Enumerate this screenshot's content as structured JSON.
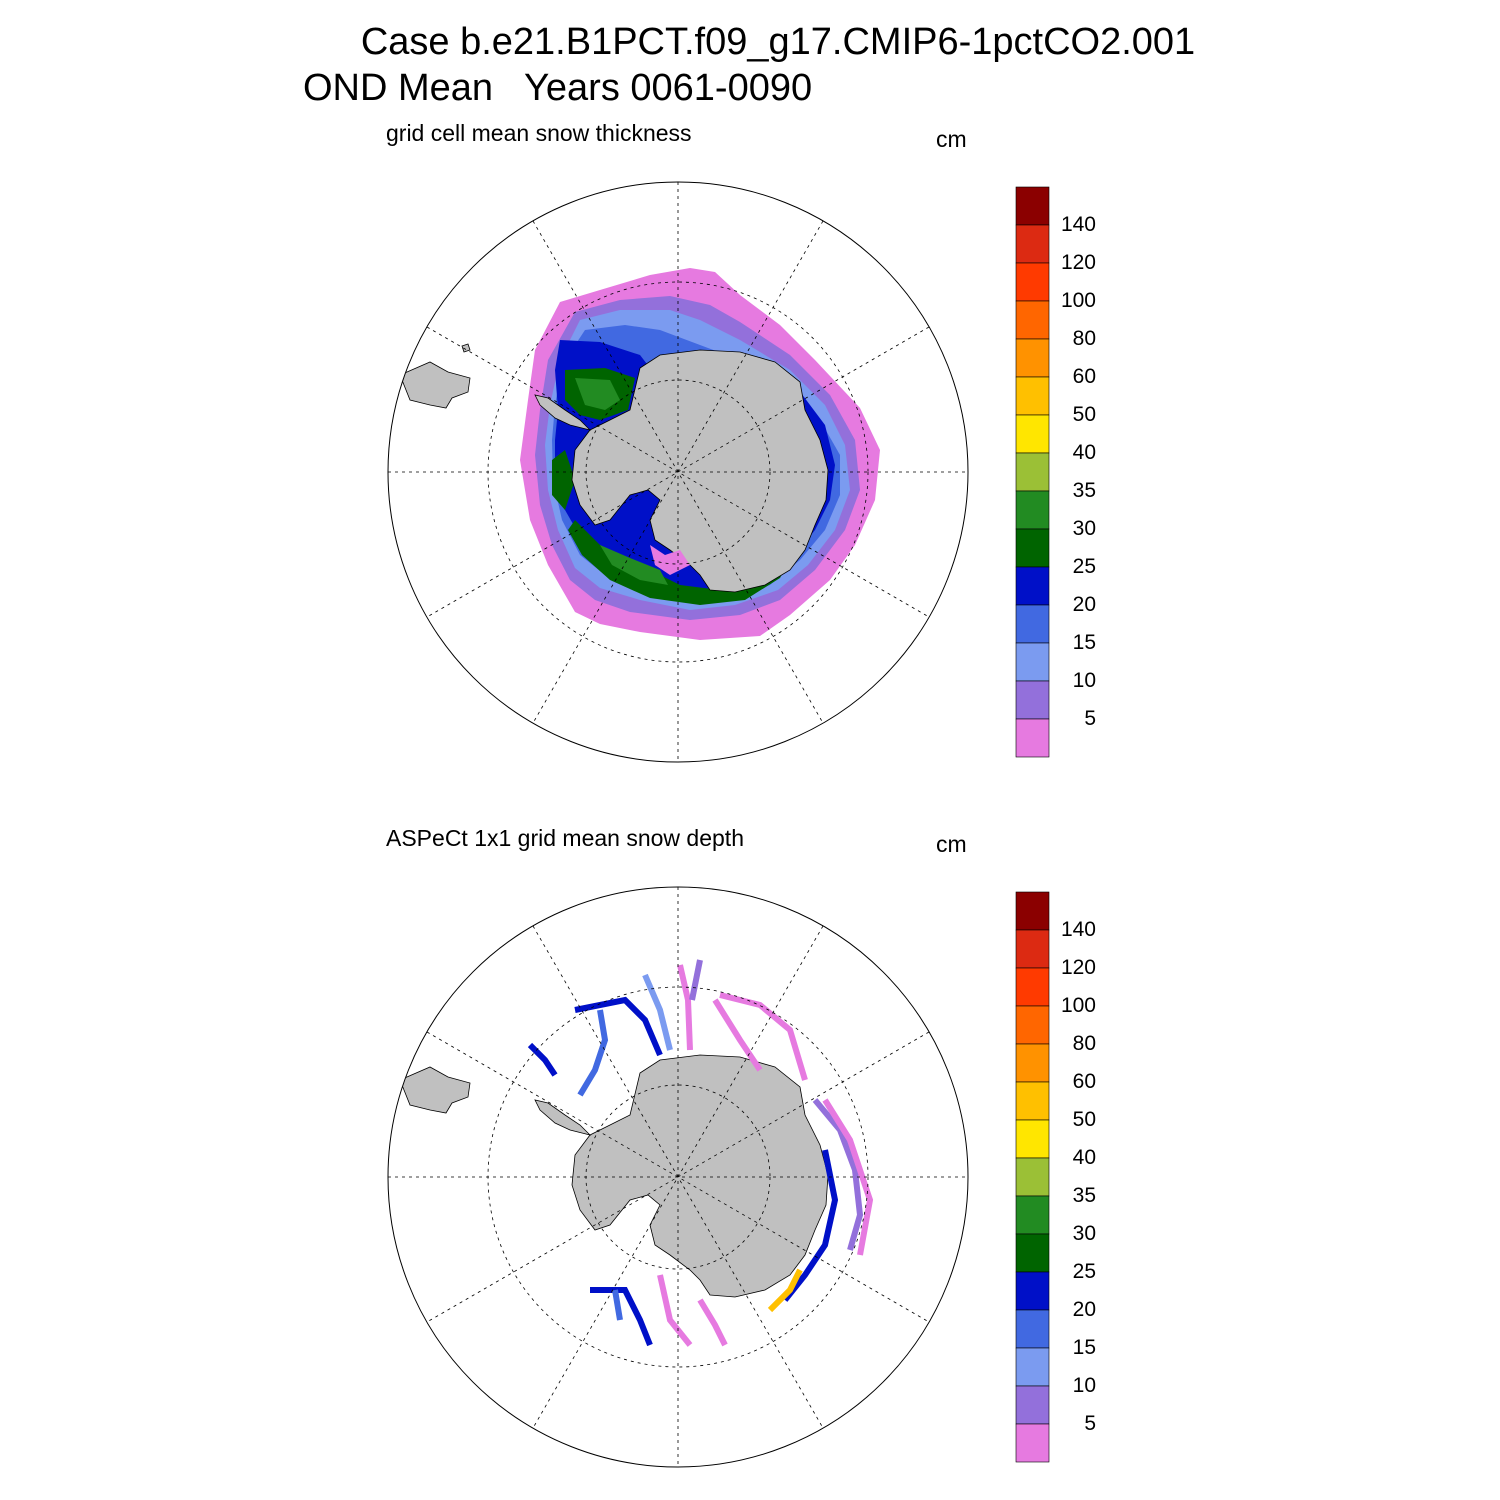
{
  "header": {
    "line1": "Case b.e21.B1PCT.f09_g17.CMIP6-1pctCO2.001",
    "line2": "OND Mean   Years 0061-0090"
  },
  "colorbar": {
    "labels": [
      "140",
      "120",
      "100",
      "80",
      "60",
      "50",
      "40",
      "35",
      "30",
      "25",
      "20",
      "15",
      "10",
      "5"
    ],
    "colors": [
      "#8b0000",
      "#dc2a12",
      "#ff3a00",
      "#ff6600",
      "#ff9200",
      "#ffc000",
      "#ffe600",
      "#9bc036",
      "#228b22",
      "#006400",
      "#0010c8",
      "#4169e1",
      "#7b9bf0",
      "#9370db",
      "#e67ae0"
    ]
  },
  "panels": [
    {
      "title": "grid cell mean snow thickness",
      "unit": "cm"
    },
    {
      "title": "ASPeCt 1x1 grid mean snow depth",
      "unit": "cm"
    }
  ],
  "map": {
    "projection": "south-polar-stereographic",
    "land_color": "#c0c0c0",
    "gridline_style": "dashed"
  }
}
